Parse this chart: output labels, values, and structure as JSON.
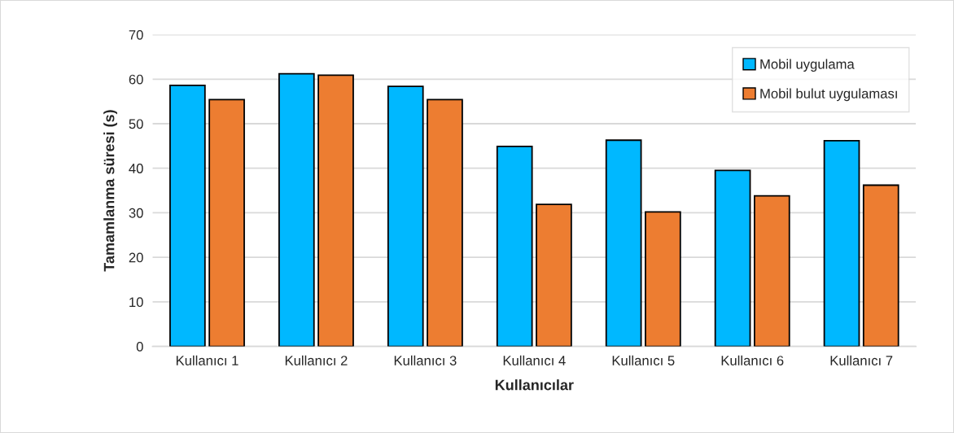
{
  "chart_data": {
    "type": "bar",
    "xlabel": "Kullanıcılar",
    "ylabel": "Tamamlanma süresi (s)",
    "categories": [
      "Kullanıcı 1",
      "Kullanıcı 2",
      "Kullanıcı 3",
      "Kullanıcı 4",
      "Kullanıcı 5",
      "Kullanıcı 6",
      "Kullanıcı 7"
    ],
    "series": [
      {
        "name": "Mobil uygulama",
        "color": "#00b8ff",
        "values": [
          58.6,
          61.2,
          58.4,
          44.9,
          46.3,
          39.5,
          46.2
        ]
      },
      {
        "name": "Mobil bulut uygulaması",
        "color": "#ed7d31",
        "values": [
          55.4,
          60.9,
          55.4,
          31.9,
          30.2,
          33.8,
          36.2
        ]
      }
    ],
    "ylim": [
      0,
      70
    ],
    "yticks": [
      0,
      10,
      20,
      30,
      40,
      50,
      60,
      70
    ],
    "grid": "y",
    "legend": "top right"
  }
}
